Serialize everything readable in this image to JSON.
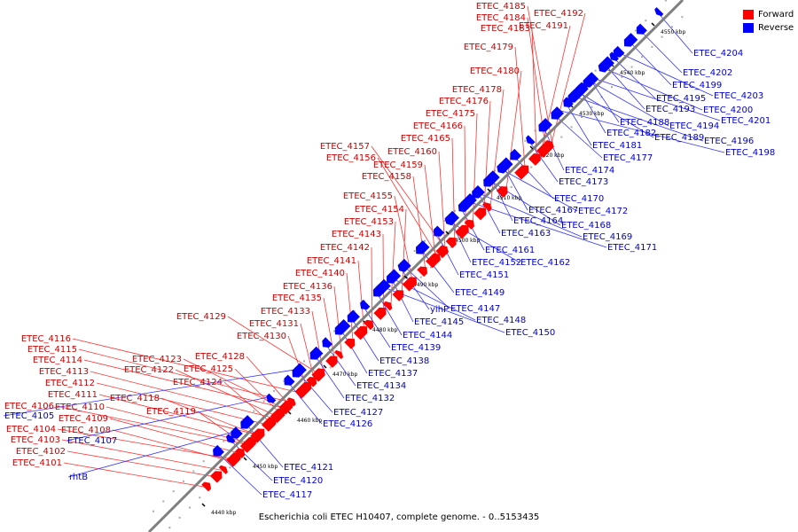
{
  "caption": "Escherichia coli ETEC H10407, complete genome. - 0..5153435",
  "legend": {
    "forward_label": "Forward",
    "reverse_label": "Reverse",
    "forward_color": "#ff0000",
    "reverse_color": "#0000ff"
  },
  "colors": {
    "forward_text": "#cc0000",
    "reverse_text": "#0000cc",
    "forward_line": "#ff3333",
    "reverse_line": "#3333ff",
    "backbone": "#808080"
  },
  "chart_data": {
    "type": "linear-genome-map",
    "orientation": "diagonal",
    "range_kbp": [
      4436,
      4556
    ],
    "tick_labels": [
      "4440 kbp",
      "4450 kbp",
      "4460 kbp",
      "4470 kbp",
      "4480 kbp",
      "4490 kbp",
      "4500 kbp",
      "4510 kbp",
      "4520 kbp",
      "4530 kbp",
      "4540 kbp",
      "4550 kbp"
    ],
    "forward_genes": [
      "ETEC_4185",
      "ETEC_4184",
      "ETEC_4183",
      "ETEC_4192",
      "ETEC_4191",
      "ETEC_4179",
      "ETEC_4180",
      "ETEC_4178",
      "ETEC_4176",
      "ETEC_4175",
      "ETEC_4166",
      "ETEC_4165",
      "ETEC_4157",
      "ETEC_4160",
      "ETEC_4156",
      "ETEC_4159",
      "ETEC_4158",
      "ETEC_4155",
      "ETEC_4154",
      "ETEC_4153",
      "ETEC_4143",
      "ETEC_4142",
      "ETEC_4141",
      "ETEC_4140",
      "ETEC_4136",
      "ETEC_4135",
      "ETEC_4133",
      "ETEC_4129",
      "ETEC_4131",
      "ETEC_4130",
      "ETEC_4128",
      "ETEC_4123",
      "ETEC_4125",
      "ETEC_4122",
      "ETEC_4124",
      "ETEC_4116",
      "ETEC_4115",
      "ETEC_4114",
      "ETEC_4113",
      "ETEC_4112",
      "ETEC_4111",
      "ETEC_4118",
      "ETEC_4119",
      "ETEC_4106",
      "ETEC_4110",
      "ETEC_4109",
      "ETEC_4104",
      "ETEC_4108",
      "ETEC_4103",
      "ETEC_4102",
      "ETEC_4101"
    ],
    "reverse_genes": [
      "ETEC_4204",
      "ETEC_4202",
      "ETEC_4199",
      "ETEC_4195",
      "ETEC_4203",
      "ETEC_4193",
      "ETEC_4200",
      "ETEC_4188",
      "ETEC_4194",
      "ETEC_4201",
      "ETEC_4182",
      "ETEC_4189",
      "ETEC_4181",
      "ETEC_4196",
      "ETEC_4198",
      "ETEC_4177",
      "ETEC_4174",
      "ETEC_4173",
      "ETEC_4170",
      "ETEC_4167",
      "ETEC_4172",
      "ETEC_4164",
      "ETEC_4168",
      "ETEC_4163",
      "ETEC_4169",
      "ETEC_4171",
      "ETEC_4161",
      "ETEC_4152",
      "ETEC_4162",
      "ETEC_4151",
      "ETEC_4149",
      "yihP",
      "ETEC_4147",
      "ETEC_4145",
      "ETEC_4148",
      "ETEC_4144",
      "ETEC_4150",
      "ETEC_4139",
      "ETEC_4138",
      "ETEC_4137",
      "ETEC_4134",
      "ETEC_4132",
      "ETEC_4127",
      "ETEC_4126",
      "ETEC_4121",
      "ETEC_4120",
      "ETEC_4117",
      "ETEC_4105",
      "ETEC_4107",
      "rhtB"
    ]
  }
}
